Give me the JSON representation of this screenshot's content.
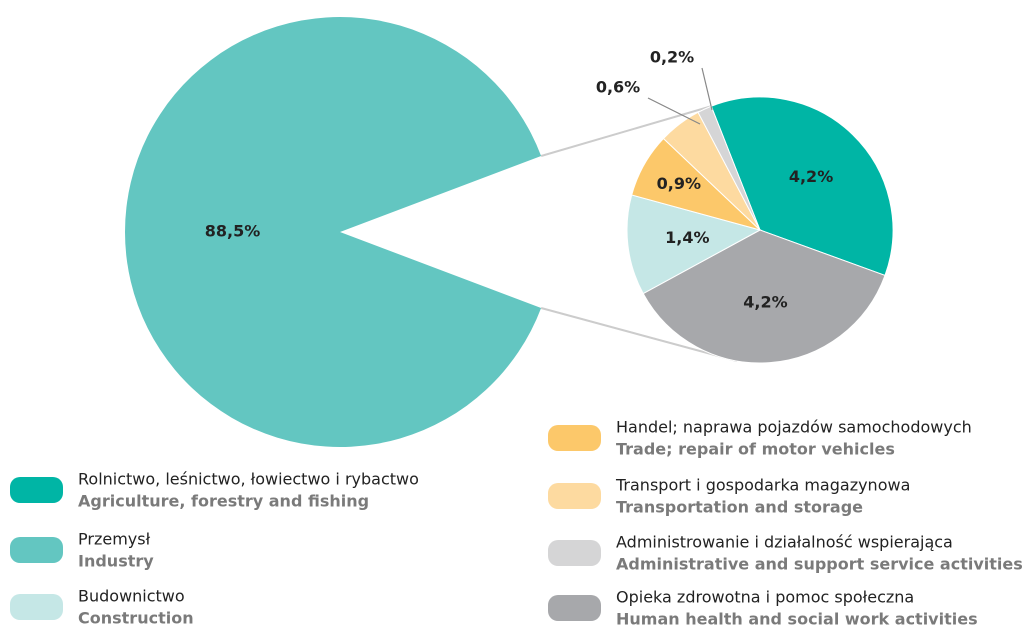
{
  "chart_data": {
    "type": "pie-of-pie",
    "categories": [
      "Rolnictwo, leśnictwo, łowiectwo i rybactwo",
      "Przemysł",
      "Budownictwo",
      "Handel;  naprawa pojazdów samochodowych",
      "Transport i gospodarka magazynowa",
      "Administrowanie i działalność wspierająca",
      "Opieka zdrowotna i pomoc społeczna"
    ],
    "categories_en": [
      "Agriculture, forestry and fishing",
      "Industry",
      "Construction",
      "Trade; repair of motor vehicles",
      "Transportation and storage",
      "Administrative and support service activities",
      "Human health and social work activities"
    ],
    "values": [
      4.2,
      88.5,
      1.4,
      0.9,
      0.6,
      0.2,
      4.2
    ],
    "value_labels": [
      "4,2%",
      "88,5%",
      "1,4%",
      "0,9%",
      "0,6%",
      "0,2%",
      "4,2%"
    ],
    "colors": [
      "#00b5a5",
      "#63c6c1",
      "#c5e7e6",
      "#fcc86a",
      "#fddaa0",
      "#d5d5d6",
      "#a7a8ab"
    ]
  }
}
